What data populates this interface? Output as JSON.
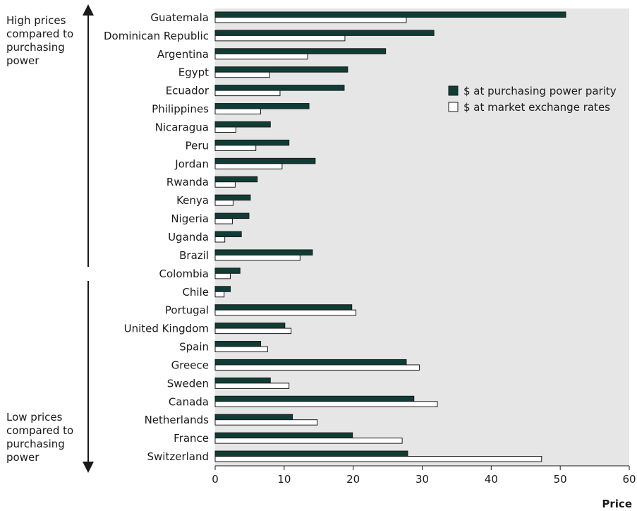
{
  "annotations": {
    "high": "High prices\ncompared to\npurchasing\npower",
    "low": "Low prices\ncompared to\npurchasing\npower"
  },
  "chart_data": {
    "type": "bar",
    "orientation": "horizontal",
    "categories": [
      "Guatemala",
      "Dominican Republic",
      "Argentina",
      "Egypt",
      "Ecuador",
      "Philippines",
      "Nicaragua",
      "Peru",
      "Jordan",
      "Rwanda",
      "Kenya",
      "Nigeria",
      "Uganda",
      "Brazil",
      "Colombia",
      "Chile",
      "Portugal",
      "United Kingdom",
      "Spain",
      "Greece",
      "Sweden",
      "Canada",
      "Netherlands",
      "France",
      "Switzerland"
    ],
    "series": [
      {
        "name": "$ at purchasing power parity",
        "color": "#0f3d36",
        "values": [
          50.8,
          31.7,
          24.7,
          19.2,
          18.7,
          13.6,
          8.0,
          10.7,
          14.5,
          6.1,
          5.1,
          4.9,
          3.8,
          14.1,
          3.6,
          2.2,
          19.8,
          10.1,
          6.6,
          27.7,
          8.0,
          28.8,
          11.2,
          19.9,
          27.9
        ]
      },
      {
        "name": "$ at market exchange rates",
        "color": "#ffffff",
        "values": [
          27.7,
          18.8,
          13.4,
          7.9,
          9.4,
          6.6,
          3.0,
          5.9,
          9.7,
          2.9,
          2.6,
          2.5,
          1.4,
          12.3,
          2.2,
          1.3,
          20.4,
          11.0,
          7.6,
          29.6,
          10.7,
          32.2,
          14.8,
          27.1,
          47.3
        ]
      }
    ],
    "xlabel": "Price",
    "ylabel": "",
    "xlim": [
      0,
      60
    ],
    "xticks": [
      0,
      10,
      20,
      30,
      40,
      50,
      60
    ],
    "grid": false,
    "legend_position": "upper-right",
    "plot_background": "#e6e6e6"
  }
}
